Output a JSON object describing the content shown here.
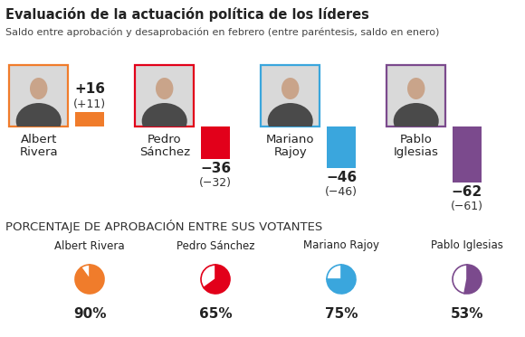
{
  "chart_data": [
    {
      "type": "bar",
      "title": "Evaluación de la actuación política de los líderes",
      "subtitle": "Saldo entre aprobación y desaprobación en febrero (entre paréntesis, saldo en enero)",
      "categories": [
        "Albert Rivera",
        "Pedro Sánchez",
        "Mariano Rajoy",
        "Pablo Iglesias"
      ],
      "values": [
        16,
        -36,
        -46,
        -62
      ],
      "value_labels": [
        "+16",
        "−36",
        "−46",
        "−62"
      ],
      "previous_values": [
        11,
        -32,
        -46,
        -61
      ],
      "previous_value_labels": [
        "(+11)",
        "(−32)",
        "(−46)",
        "(−61)"
      ],
      "colors": [
        "#f07c2b",
        "#e2001a",
        "#3aa6dd",
        "#7b4a8d"
      ],
      "ylim": [
        -70,
        20
      ],
      "data_labels": true,
      "tick_labels": false
    },
    {
      "type": "pie",
      "title": "PORCENTAJE DE APROBACIÓN ENTRE SUS VOTANTES",
      "categories": [
        "Albert Rivera",
        "Pedro Sánchez",
        "Mariano Rajoy",
        "Pablo Iglesias"
      ],
      "values": [
        90,
        65,
        75,
        53
      ],
      "value_labels": [
        "90%",
        "65%",
        "75%",
        "53%"
      ],
      "colors": [
        "#f07c2b",
        "#e2001a",
        "#3aa6dd",
        "#7b4a8d"
      ],
      "data_labels": true,
      "tick_labels": false
    }
  ]
}
